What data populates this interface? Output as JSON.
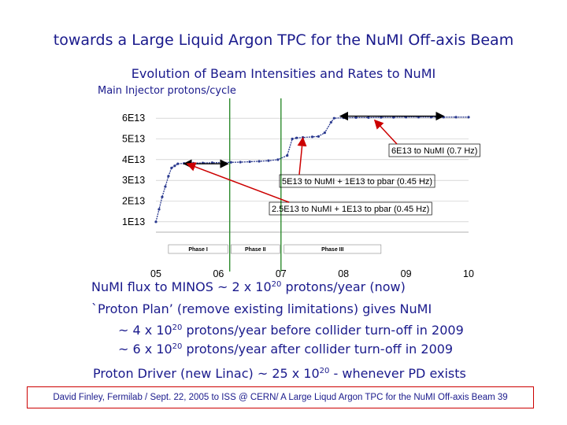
{
  "slide": {
    "title": "towards a Large Liquid Argon TPC for the NuMI Off-axis Beam",
    "subtitle": "Evolution of Beam Intensities and Rates to NuMI",
    "footer": "David Finley, Fermilab / Sept. 22, 2005 to ISS @ CERN/ A Large Liqud Argon TPC for the NuMI Off-axis Beam 39"
  },
  "text": {
    "flux_prefix": "NuMI flux to MINOS ~ 2 x 10",
    "flux_exp": "20",
    "flux_suffix": " protons/year (now)",
    "plan": "`Proton Plan’ (remove existing limitations) gives NuMI",
    "before_prefix": "~ 4 x 10",
    "before_exp": "20",
    "before_suffix": " protons/year before collider turn-off in 2009",
    "after_prefix": "~ 6 x 10",
    "after_exp": "20",
    "after_suffix": " protons/year after collider turn-off in 2009",
    "pd_prefix": "Proton Driver (new Linac) ~ 25 x 10",
    "pd_exp": "20",
    "pd_suffix": "  - whenever PD exists"
  },
  "colors": {
    "text_blue": "#1a1a8c",
    "series": "#2b3a8f",
    "marker_line": "#2e8b2e",
    "arrow": "#cc0000",
    "grid": "#c0c0c0",
    "footer_border": "#cc0000"
  },
  "chart_data": {
    "type": "line",
    "ylabel": "Main Injector protons/cycle",
    "xlabel": "",
    "x_ticks": [
      "05",
      "06",
      "07",
      "08",
      "09",
      "10"
    ],
    "y_ticks": [
      "1E13",
      "2E13",
      "3E13",
      "4E13",
      "5E13",
      "6E13"
    ],
    "xlim": [
      2005,
      2010
    ],
    "ylim": [
      5000000000000.0,
      65000000000000.0
    ],
    "grid": "horizontal",
    "series": [
      {
        "points": [
          [
            2005.0,
            10000000000000.0
          ],
          [
            2005.05,
            16000000000000.0
          ],
          [
            2005.1,
            22000000000000.0
          ],
          [
            2005.15,
            27000000000000.0
          ],
          [
            2005.2,
            32000000000000.0
          ],
          [
            2005.25,
            36000000000000.0
          ],
          [
            2005.3,
            37000000000000.0
          ],
          [
            2005.35,
            38000000000000.0
          ],
          [
            2005.45,
            38200000000000.0
          ],
          [
            2005.6,
            38300000000000.0
          ],
          [
            2005.75,
            38400000000000.0
          ],
          [
            2005.9,
            38500000000000.0
          ],
          [
            2006.05,
            38600000000000.0
          ],
          [
            2006.2,
            38700000000000.0
          ],
          [
            2006.35,
            38800000000000.0
          ],
          [
            2006.5,
            39000000000000.0
          ],
          [
            2006.65,
            39200000000000.0
          ],
          [
            2006.8,
            39500000000000.0
          ],
          [
            2006.95,
            40000000000000.0
          ],
          [
            2007.1,
            42000000000000.0
          ],
          [
            2007.18,
            50000000000000.0
          ],
          [
            2007.25,
            50500000000000.0
          ],
          [
            2007.35,
            50700000000000.0
          ],
          [
            2007.5,
            51000000000000.0
          ],
          [
            2007.6,
            51200000000000.0
          ],
          [
            2007.7,
            53000000000000.0
          ],
          [
            2007.8,
            58000000000000.0
          ],
          [
            2007.85,
            60000000000000.0
          ],
          [
            2008.0,
            60200000000000.0
          ],
          [
            2008.2,
            60300000000000.0
          ],
          [
            2008.4,
            60300000000000.0
          ],
          [
            2008.6,
            60400000000000.0
          ],
          [
            2008.8,
            60400000000000.0
          ],
          [
            2009.0,
            60500000000000.0
          ],
          [
            2009.2,
            60500000000000.0
          ],
          [
            2009.4,
            60500000000000.0
          ],
          [
            2009.6,
            60500000000000.0
          ],
          [
            2009.8,
            60500000000000.0
          ],
          [
            2010.0,
            60500000000000.0
          ]
        ]
      }
    ],
    "markers": [
      2006.18,
      2007.0
    ],
    "phases": [
      {
        "label": "Phase I",
        "from": 2005.2,
        "to": 2006.15
      },
      {
        "label": "Phase II",
        "from": 2006.2,
        "to": 2006.98
      },
      {
        "label": "Phase III",
        "from": 2007.05,
        "to": 2008.6
      }
    ],
    "annotations": [
      {
        "text": "6E13 to NuMI (0.7 Hz)",
        "from": [
          2008.75,
          50000000000000.0
        ],
        "to": [
          2008.5,
          59000000000000.0
        ]
      },
      {
        "text": "5E13 to NuMI + 1E13 to pbar (0.45 Hz)",
        "from": [
          2008.3,
          40000000000000.0
        ],
        "to": [
          2007.35,
          50500000000000.0
        ]
      },
      {
        "text": "2.5E13 to NuMI + 1E13 to pbar (0.45 Hz)",
        "from": [
          2008.3,
          29000000000000.0
        ],
        "to": [
          2005.5,
          38000000000000.0
        ]
      }
    ]
  }
}
